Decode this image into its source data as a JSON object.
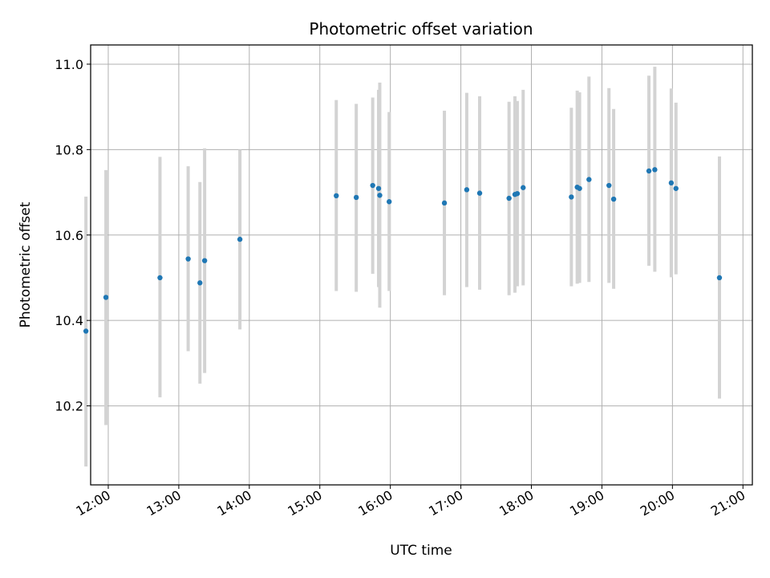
{
  "chart_data": {
    "type": "scatter",
    "title": "Photometric offset variation",
    "xlabel": "UTC time",
    "ylabel": "Photometric offset",
    "grid": true,
    "xlim": [
      "11:45",
      "21:08"
    ],
    "ylim": [
      10.015,
      11.045
    ],
    "x_ticks": [
      "12:00",
      "13:00",
      "14:00",
      "15:00",
      "16:00",
      "17:00",
      "18:00",
      "19:00",
      "20:00",
      "21:00"
    ],
    "y_ticks": [
      "10.2",
      "10.4",
      "10.6",
      "10.8",
      "11.0"
    ],
    "colors": {
      "points": "#1f77b4",
      "errorbars": "#d3d3d3",
      "grid": "#b0b0b0"
    },
    "points": [
      {
        "x": "11:41",
        "y": 10.375,
        "ylo": 10.058,
        "yhi": 10.69
      },
      {
        "x": "11:58",
        "y": 10.454,
        "ylo": 10.155,
        "yhi": 10.752
      },
      {
        "x": "12:44",
        "y": 10.5,
        "ylo": 10.22,
        "yhi": 10.783
      },
      {
        "x": "13:08",
        "y": 10.544,
        "ylo": 10.328,
        "yhi": 10.761
      },
      {
        "x": "13:18",
        "y": 10.488,
        "ylo": 10.252,
        "yhi": 10.724
      },
      {
        "x": "13:22",
        "y": 10.54,
        "ylo": 10.277,
        "yhi": 10.803
      },
      {
        "x": "13:52",
        "y": 10.59,
        "ylo": 10.379,
        "yhi": 10.8
      },
      {
        "x": "15:14",
        "y": 10.692,
        "ylo": 10.469,
        "yhi": 10.916
      },
      {
        "x": "15:31",
        "y": 10.688,
        "ylo": 10.467,
        "yhi": 10.907
      },
      {
        "x": "15:45",
        "y": 10.716,
        "ylo": 10.509,
        "yhi": 10.922
      },
      {
        "x": "15:50",
        "y": 10.709,
        "ylo": 10.478,
        "yhi": 10.94
      },
      {
        "x": "15:51",
        "y": 10.693,
        "ylo": 10.43,
        "yhi": 10.957
      },
      {
        "x": "15:59",
        "y": 10.678,
        "ylo": 10.469,
        "yhi": 10.888
      },
      {
        "x": "16:46",
        "y": 10.675,
        "ylo": 10.459,
        "yhi": 10.891
      },
      {
        "x": "17:05",
        "y": 10.706,
        "ylo": 10.478,
        "yhi": 10.933
      },
      {
        "x": "17:16",
        "y": 10.698,
        "ylo": 10.472,
        "yhi": 10.925
      },
      {
        "x": "17:41",
        "y": 10.686,
        "ylo": 10.459,
        "yhi": 10.912
      },
      {
        "x": "17:46",
        "y": 10.695,
        "ylo": 10.465,
        "yhi": 10.925
      },
      {
        "x": "17:48",
        "y": 10.697,
        "ylo": 10.48,
        "yhi": 10.914
      },
      {
        "x": "17:53",
        "y": 10.711,
        "ylo": 10.482,
        "yhi": 10.94
      },
      {
        "x": "18:34",
        "y": 10.689,
        "ylo": 10.48,
        "yhi": 10.898
      },
      {
        "x": "18:39",
        "y": 10.712,
        "ylo": 10.486,
        "yhi": 10.938
      },
      {
        "x": "18:41",
        "y": 10.709,
        "ylo": 10.488,
        "yhi": 10.934
      },
      {
        "x": "18:49",
        "y": 10.73,
        "ylo": 10.49,
        "yhi": 10.971
      },
      {
        "x": "19:06",
        "y": 10.716,
        "ylo": 10.488,
        "yhi": 10.944
      },
      {
        "x": "19:10",
        "y": 10.684,
        "ylo": 10.474,
        "yhi": 10.895
      },
      {
        "x": "19:40",
        "y": 10.75,
        "ylo": 10.528,
        "yhi": 10.973
      },
      {
        "x": "19:45",
        "y": 10.753,
        "ylo": 10.514,
        "yhi": 10.994
      },
      {
        "x": "19:59",
        "y": 10.722,
        "ylo": 10.501,
        "yhi": 10.943
      },
      {
        "x": "20:03",
        "y": 10.709,
        "ylo": 10.508,
        "yhi": 10.91
      },
      {
        "x": "20:40",
        "y": 10.5,
        "ylo": 10.217,
        "yhi": 10.784
      }
    ]
  }
}
